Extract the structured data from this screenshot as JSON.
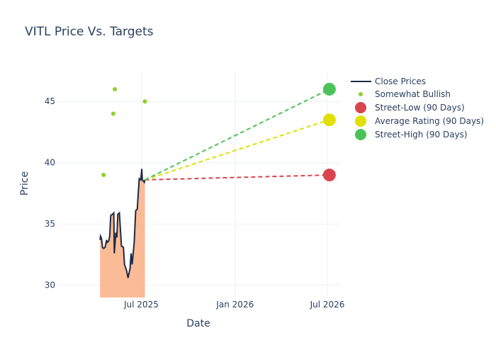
{
  "chart_data": {
    "type": "line",
    "title": "VITL Price Vs. Targets",
    "xlabel": "Date",
    "ylabel": "Price",
    "xlim": [
      "2025-01-16",
      "2026-07-26"
    ],
    "ylim": [
      29,
      47.5
    ],
    "grid": true,
    "legend_position": "top-right",
    "x_ticks": [
      {
        "date": "2025-07-01",
        "label": "Jul 2025"
      },
      {
        "date": "2026-01-01",
        "label": "Jan 2026"
      },
      {
        "date": "2026-07-01",
        "label": "Jul 2026"
      }
    ],
    "y_ticks": [
      30,
      35,
      40,
      45
    ],
    "colors": {
      "close": "#1f2a44",
      "fill": "#f9b48b",
      "bullish": "#8fd12a",
      "low": "#d9454f",
      "avg": "#e0e000",
      "high": "#4cc35a"
    },
    "series": [
      {
        "name": "Close Prices",
        "x": [
          "2025-04-11",
          "2025-04-12",
          "2025-04-14",
          "2025-04-16",
          "2025-04-18",
          "2025-04-21",
          "2025-04-24",
          "2025-04-25",
          "2025-04-28",
          "2025-04-30",
          "2025-05-02",
          "2025-05-06",
          "2025-05-08",
          "2025-05-09",
          "2025-05-12",
          "2025-05-14",
          "2025-05-16",
          "2025-05-19",
          "2025-05-23",
          "2025-05-27",
          "2025-05-29",
          "2025-06-02",
          "2025-06-05",
          "2025-06-09",
          "2025-06-11",
          "2025-06-13",
          "2025-06-17",
          "2025-06-20",
          "2025-06-23",
          "2025-06-25",
          "2025-06-27",
          "2025-06-30",
          "2025-07-02",
          "2025-07-03",
          "2025-07-07",
          "2025-07-08"
        ],
        "y": [
          33.7,
          34.0,
          33.8,
          33.1,
          33.0,
          33.1,
          33.7,
          33.5,
          33.6,
          34.0,
          35.7,
          35.8,
          35.9,
          32.6,
          34.3,
          33.9,
          35.8,
          35.9,
          33.2,
          33.1,
          31.7,
          31.2,
          30.6,
          31.4,
          32.6,
          31.7,
          33.5,
          36.1,
          36.2,
          37.5,
          38.7,
          38.6,
          39.5,
          38.6,
          38.4,
          38.6
        ]
      },
      {
        "name": "Somewhat Bullish",
        "x": [
          "2025-04-18",
          "2025-05-07",
          "2025-05-10",
          "2025-07-08"
        ],
        "y": [
          39,
          44,
          46,
          45
        ]
      },
      {
        "name": "Street-Low (90 Days)",
        "start": [
          "2025-07-08",
          38.6
        ],
        "x": "2026-07-05",
        "y": 39
      },
      {
        "name": "Average Rating (90 Days)",
        "start": [
          "2025-07-08",
          38.6
        ],
        "x": "2026-07-05",
        "y": 43.5
      },
      {
        "name": "Street-High (90 Days)",
        "start": [
          "2025-07-08",
          38.6
        ],
        "x": "2026-07-05",
        "y": 46
      }
    ]
  }
}
